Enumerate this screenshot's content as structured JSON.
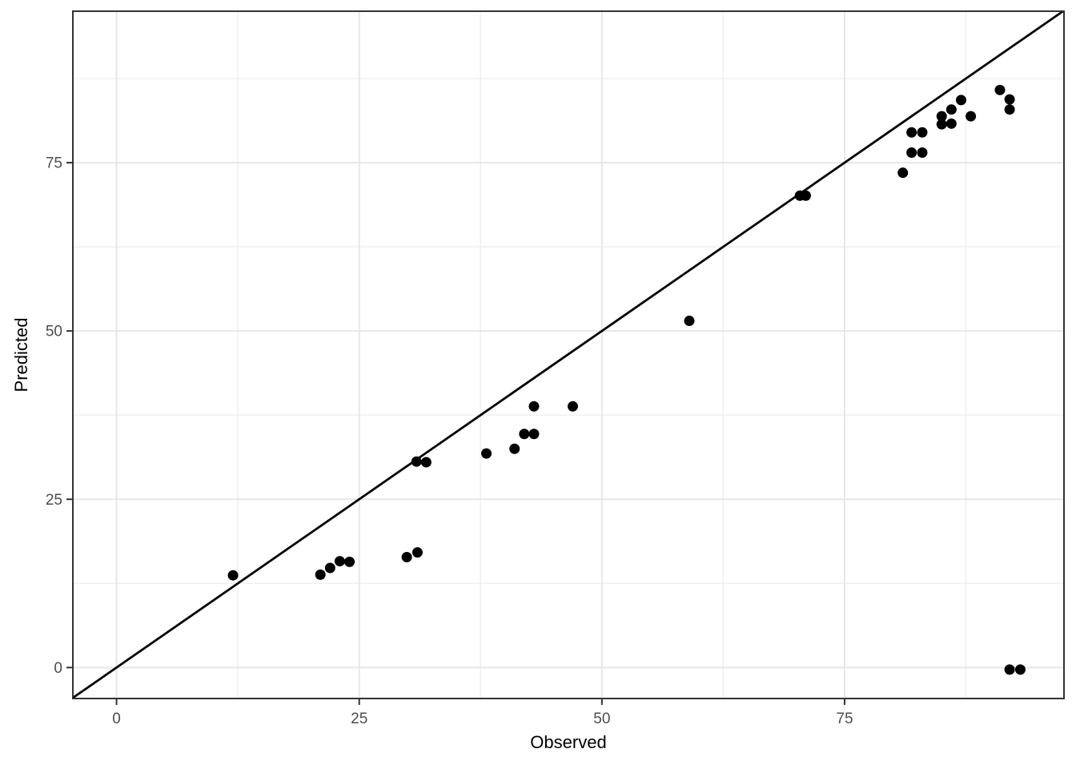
{
  "chart_data": {
    "type": "scatter",
    "title": "",
    "xlabel": "Observed",
    "ylabel": "Predicted",
    "xlim": [
      -4.5,
      97.6
    ],
    "ylim": [
      -4.6,
      97.5
    ],
    "x_ticks": [
      0,
      25,
      50,
      75
    ],
    "y_ticks": [
      0,
      25,
      50,
      75
    ],
    "x_minor_gridlines": [
      12.5,
      37.5,
      62.5,
      87.5
    ],
    "y_minor_gridlines": [
      12.5,
      37.5,
      62.5,
      87.5
    ],
    "grid": true,
    "legend": false,
    "reference_line": {
      "kind": "identity",
      "slope": 1,
      "intercept": 0
    },
    "series": [
      {
        "name": "points",
        "points": [
          {
            "x": 12.0,
            "y": 13.7
          },
          {
            "x": 21.0,
            "y": 13.8
          },
          {
            "x": 22.0,
            "y": 14.8
          },
          {
            "x": 23.0,
            "y": 15.8
          },
          {
            "x": 24.0,
            "y": 15.7
          },
          {
            "x": 29.9,
            "y": 16.4
          },
          {
            "x": 31.0,
            "y": 17.1
          },
          {
            "x": 30.9,
            "y": 30.6
          },
          {
            "x": 31.9,
            "y": 30.5
          },
          {
            "x": 38.1,
            "y": 31.8
          },
          {
            "x": 41.0,
            "y": 32.5
          },
          {
            "x": 42.0,
            "y": 34.7
          },
          {
            "x": 43.0,
            "y": 34.7
          },
          {
            "x": 43.0,
            "y": 38.8
          },
          {
            "x": 47.0,
            "y": 38.8
          },
          {
            "x": 59.0,
            "y": 51.5
          },
          {
            "x": 70.4,
            "y": 70.1
          },
          {
            "x": 71.0,
            "y": 70.1
          },
          {
            "x": 81.0,
            "y": 73.5
          },
          {
            "x": 81.9,
            "y": 76.5
          },
          {
            "x": 83.0,
            "y": 76.5
          },
          {
            "x": 81.9,
            "y": 79.5
          },
          {
            "x": 83.0,
            "y": 79.5
          },
          {
            "x": 85.0,
            "y": 80.7
          },
          {
            "x": 85.0,
            "y": 81.9
          },
          {
            "x": 86.0,
            "y": 80.8
          },
          {
            "x": 86.0,
            "y": 82.9
          },
          {
            "x": 87.0,
            "y": 84.3
          },
          {
            "x": 88.0,
            "y": 81.9
          },
          {
            "x": 91.0,
            "y": 85.8
          },
          {
            "x": 92.0,
            "y": 82.9
          },
          {
            "x": 92.0,
            "y": 84.4
          },
          {
            "x": 92.0,
            "y": -0.3
          },
          {
            "x": 93.1,
            "y": -0.3
          }
        ]
      }
    ],
    "colors": {
      "point": "#000000",
      "reference_line": "#000000",
      "panel_background": "#ffffff",
      "panel_border": "#333333",
      "grid_major": "#e7e7e7",
      "grid_minor": "#efefef",
      "tick_mark": "#333333",
      "tick_label": "#4d4d4d",
      "axis_title": "#000000"
    }
  }
}
